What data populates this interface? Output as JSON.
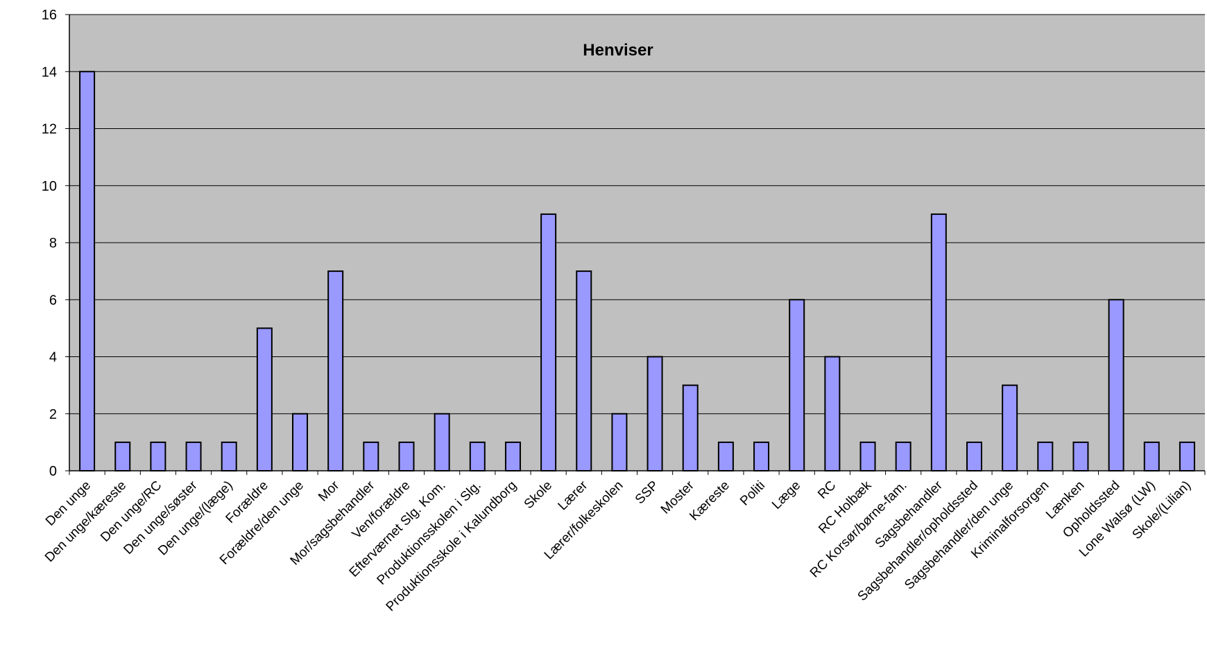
{
  "chart_data": {
    "type": "bar",
    "title": "Henviser",
    "xlabel": "",
    "ylabel": "",
    "ylim": [
      0,
      16
    ],
    "yticks": [
      0,
      2,
      4,
      6,
      8,
      10,
      12,
      14,
      16
    ],
    "grid": true,
    "legend": "none",
    "colors": {
      "plot_background": "#C0C0C0",
      "bar_fill": "#9999FF",
      "bar_stroke": "#000000",
      "grid": "#000000"
    },
    "categories": [
      "Den unge",
      "Den unge/kæreste",
      "Den unge/RC",
      "Den unge/søster",
      "Den unge/(læge)",
      "Forældre",
      "Forældre/den unge",
      "Mor",
      "Mor/sagsbehandler",
      "Ven/forældre",
      "Efterværnet Slg. Kom.",
      "Produktionsskolen i Slg.",
      "Produktionsskole i Kalundborg",
      "Skole",
      "Lærer",
      "Lærer/folkeskolen",
      "SSP",
      "Moster",
      "Kæreste",
      "Politi",
      "Læge",
      "RC",
      "RC Holbæk",
      "RC Korsør/børne-fam.",
      "Sagsbehandler",
      "Sagsbehandler/opholdssted",
      "Sagsbehandler/den unge",
      "Kriminalforsorgen",
      "Lænken",
      "Opholdssted",
      "Lone Walsø (LW)",
      "Skole/(Lilian)"
    ],
    "values": [
      14,
      1,
      1,
      1,
      1,
      5,
      2,
      7,
      1,
      1,
      2,
      1,
      1,
      9,
      7,
      2,
      4,
      3,
      1,
      1,
      6,
      4,
      1,
      1,
      9,
      1,
      3,
      1,
      1,
      6,
      1,
      1
    ]
  }
}
